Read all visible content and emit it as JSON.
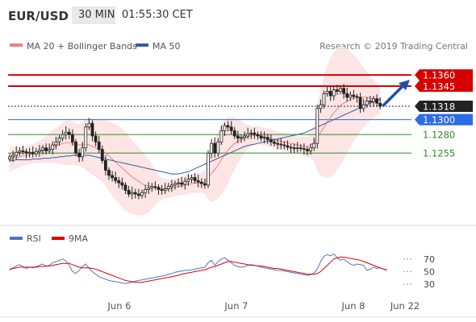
{
  "header": {
    "symbol": "EUR/USD",
    "interval": "30 MIN",
    "time": "01:55:30 CET"
  },
  "legend": {
    "items": [
      {
        "label": "MA 20 + Bollinger Bands",
        "color": "#f08080"
      },
      {
        "label": "MA 50",
        "color": "#2f5f9e"
      }
    ],
    "credit": "Research © 2019 Trading Central"
  },
  "chart_data": [
    {
      "type": "candlestick",
      "name": "EUR/USD 30 MIN",
      "x_labels": [
        "Jun 6",
        "Jun 7",
        "Jun 8",
        "Jun 22"
      ],
      "price_levels": [
        {
          "value": 1.136,
          "label": "1.1360",
          "color": "#d60000",
          "kind": "resistance"
        },
        {
          "value": 1.1345,
          "label": "1.1345",
          "color": "#d60000",
          "kind": "resistance"
        },
        {
          "value": 1.1318,
          "label": "1.1318",
          "color": "#222222",
          "kind": "last"
        },
        {
          "value": 1.13,
          "label": "1.1300",
          "color": "#2e6be6",
          "kind": "pivot"
        },
        {
          "value": 1.128,
          "label": "1.1280",
          "color": "#2e8b2e",
          "kind": "support"
        },
        {
          "value": 1.1255,
          "label": "1.1255",
          "color": "#2e8b2e",
          "kind": "support"
        }
      ],
      "close_prices": [
        1.125,
        1.1252,
        1.1256,
        1.1258,
        1.1257,
        1.1255,
        1.1256,
        1.1254,
        1.1257,
        1.1259,
        1.1262,
        1.1258,
        1.126,
        1.1266,
        1.127,
        1.1275,
        1.128,
        1.1283,
        1.128,
        1.127,
        1.1255,
        1.125,
        1.1262,
        1.129,
        1.1295,
        1.1278,
        1.127,
        1.126,
        1.1245,
        1.1232,
        1.1225,
        1.1222,
        1.1218,
        1.1215,
        1.1212,
        1.1205,
        1.12,
        1.1202,
        1.12,
        1.1198,
        1.1202,
        1.1206,
        1.1208,
        1.121,
        1.1209,
        1.1206,
        1.1205,
        1.1207,
        1.121,
        1.1212,
        1.1214,
        1.1215,
        1.1213,
        1.1217,
        1.122,
        1.1222,
        1.1218,
        1.1216,
        1.1214,
        1.1212,
        1.1255,
        1.1268,
        1.1255,
        1.127,
        1.1285,
        1.1292,
        1.129,
        1.1285,
        1.1278,
        1.1275,
        1.1276,
        1.1278,
        1.1281,
        1.1282,
        1.128,
        1.1278,
        1.1275,
        1.1276,
        1.1273,
        1.127,
        1.1268,
        1.1267,
        1.1266,
        1.1265,
        1.1263,
        1.1262,
        1.1261,
        1.1262,
        1.1261,
        1.126,
        1.1258,
        1.1262,
        1.1268,
        1.1315,
        1.132,
        1.1335,
        1.1338,
        1.1332,
        1.134,
        1.1338,
        1.1342,
        1.1335,
        1.133,
        1.1333,
        1.1331,
        1.133,
        1.1315,
        1.132,
        1.1325,
        1.1324,
        1.1328,
        1.1322,
        1.1318
      ],
      "ma20": [
        1.1246,
        1.1248,
        1.1249,
        1.125,
        1.1251,
        1.1252,
        1.1253,
        1.1254,
        1.1256,
        1.1257,
        1.1258,
        1.126,
        1.1262,
        1.1264,
        1.1265,
        1.1266,
        1.1268,
        1.1269,
        1.1269,
        1.1268,
        1.1266,
        1.1266,
        1.1266,
        1.1267,
        1.1266,
        1.1264,
        1.1262,
        1.126,
        1.1258,
        1.1255,
        1.1251,
        1.1247,
        1.1243,
        1.1239,
        1.1235,
        1.1231,
        1.1227,
        1.1223,
        1.122,
        1.1217,
        1.1214,
        1.1212,
        1.1211,
        1.121,
        1.1209,
        1.1208,
        1.1207,
        1.1207,
        1.1207,
        1.1208,
        1.1209,
        1.121,
        1.1211,
        1.1212,
        1.1213,
        1.1214,
        1.1215,
        1.1215,
        1.1215,
        1.1216,
        1.1222,
        1.1228,
        1.1233,
        1.1239,
        1.1246,
        1.1253,
        1.1259,
        1.1264,
        1.1268,
        1.1271,
        1.1273,
        1.1275,
        1.1277,
        1.1278,
        1.1279,
        1.1279,
        1.1278,
        1.1277,
        1.1276,
        1.1275,
        1.1273,
        1.1272,
        1.1271,
        1.127,
        1.1269,
        1.1268,
        1.1267,
        1.1266,
        1.1265,
        1.1264,
        1.1264,
        1.1266,
        1.1269,
        1.1276,
        1.1283,
        1.129,
        1.1297,
        1.1303,
        1.1309,
        1.1314,
        1.1319,
        1.1322,
        1.1325,
        1.1327,
        1.1329,
        1.133,
        1.133,
        1.133,
        1.133,
        1.1329,
        1.1328,
        1.1327,
        1.1326
      ],
      "ma50": [
        1.1245,
        1.1245,
        1.1246,
        1.1246,
        1.1246,
        1.1246,
        1.1246,
        1.1247,
        1.1247,
        1.1247,
        1.1248,
        1.1248,
        1.1248,
        1.1249,
        1.1249,
        1.125,
        1.125,
        1.1251,
        1.1251,
        1.1252,
        1.1252,
        1.1252,
        1.1252,
        1.1252,
        1.1252,
        1.1251,
        1.125,
        1.1249,
        1.1248,
        1.1247,
        1.1246,
        1.1245,
        1.1244,
        1.1243,
        1.1242,
        1.1241,
        1.124,
        1.1239,
        1.1238,
        1.1237,
        1.1236,
        1.1235,
        1.1234,
        1.1233,
        1.1232,
        1.1231,
        1.123,
        1.1229,
        1.1228,
        1.1227,
        1.1227,
        1.1227,
        1.1228,
        1.1229,
        1.123,
        1.1232,
        1.1234,
        1.1236,
        1.1238,
        1.124,
        1.1242,
        1.1244,
        1.1246,
        1.1248,
        1.125,
        1.1252,
        1.1254,
        1.1256,
        1.1258,
        1.126,
        1.1262,
        1.1264,
        1.1265,
        1.1266,
        1.1267,
        1.1268,
        1.1269,
        1.127,
        1.1271,
        1.1272,
        1.1273,
        1.1274,
        1.1275,
        1.1276,
        1.1277,
        1.1278,
        1.1279,
        1.128,
        1.1281,
        1.1282,
        1.1284,
        1.1286,
        1.1288,
        1.129,
        1.1292,
        1.1294,
        1.1296,
        1.1298,
        1.13,
        1.1302,
        1.1304,
        1.1306,
        1.1308,
        1.131,
        1.1312,
        1.1314,
        1.1316,
        1.1318,
        1.132,
        1.1322,
        1.1324,
        1.1326,
        1.1328
      ],
      "bollinger_width": [
        0.0016,
        0.0016,
        0.0015,
        0.0014,
        0.0013,
        0.0013,
        0.0013,
        0.0013,
        0.0014,
        0.0015,
        0.0016,
        0.0018,
        0.002,
        0.0022,
        0.0024,
        0.0026,
        0.0028,
        0.003,
        0.003,
        0.0029,
        0.0028,
        0.0028,
        0.003,
        0.0034,
        0.0037,
        0.0038,
        0.0039,
        0.004,
        0.0042,
        0.0045,
        0.0047,
        0.0049,
        0.0051,
        0.0052,
        0.0053,
        0.0053,
        0.0052,
        0.005,
        0.0048,
        0.0046,
        0.0043,
        0.004,
        0.0036,
        0.003,
        0.0024,
        0.0018,
        0.0015,
        0.0013,
        0.0012,
        0.0012,
        0.0012,
        0.0012,
        0.0012,
        0.0013,
        0.0013,
        0.0013,
        0.0013,
        0.0013,
        0.0014,
        0.0016,
        0.003,
        0.0038,
        0.0042,
        0.0045,
        0.0047,
        0.0047,
        0.0045,
        0.004,
        0.0035,
        0.003,
        0.0025,
        0.002,
        0.0016,
        0.0013,
        0.0012,
        0.0012,
        0.0012,
        0.0012,
        0.0012,
        0.0012,
        0.0012,
        0.0012,
        0.0012,
        0.0012,
        0.0012,
        0.0012,
        0.0012,
        0.0012,
        0.0012,
        0.0013,
        0.0013,
        0.0018,
        0.0025,
        0.0045,
        0.0058,
        0.0068,
        0.0075,
        0.008,
        0.0082,
        0.0082,
        0.008,
        0.0076,
        0.007,
        0.0064,
        0.0058,
        0.0052,
        0.0046,
        0.004,
        0.0035,
        0.003,
        0.0026,
        0.0022,
        0.0019,
        0.0017
      ]
    },
    {
      "type": "line",
      "name": "RSI",
      "legend": [
        {
          "label": "RSI",
          "color": "#4a78c8"
        },
        {
          "label": "9MA",
          "color": "#e00000"
        }
      ],
      "y_ticks": [
        70,
        50,
        30
      ],
      "ylim": [
        25,
        85
      ],
      "x_labels": [
        "Jun 6",
        "Jun 7",
        "Jun 8",
        "Jun 22"
      ],
      "series": [
        {
          "name": "RSI",
          "values": [
            52,
            56,
            59,
            61,
            58,
            55,
            57,
            56,
            58,
            60,
            62,
            58,
            60,
            64,
            66,
            68,
            70,
            67,
            60,
            50,
            47,
            52,
            58,
            62,
            55,
            50,
            46,
            42,
            40,
            38,
            36,
            35,
            34,
            33,
            32,
            31,
            32,
            33,
            35,
            36,
            37,
            38,
            39,
            40,
            41,
            42,
            43,
            44,
            46,
            47,
            49,
            50,
            51,
            52,
            52,
            53,
            54,
            55,
            56,
            57,
            64,
            68,
            60,
            66,
            70,
            72,
            68,
            64,
            60,
            58,
            57,
            58,
            60,
            61,
            60,
            59,
            57,
            56,
            55,
            54,
            53,
            52,
            52,
            51,
            50,
            49,
            48,
            47,
            46,
            45,
            44,
            45,
            48,
            54,
            66,
            74,
            77,
            75,
            78,
            72,
            68,
            70,
            66,
            62,
            60,
            62,
            61,
            60,
            52,
            54,
            57,
            55,
            56,
            54,
            52
          ]
        },
        {
          "name": "9MA",
          "values": [
            54,
            55,
            56,
            57,
            57,
            57,
            57,
            57,
            57,
            58,
            58,
            59,
            59,
            60,
            61,
            62,
            63,
            63,
            63,
            61,
            59,
            57,
            56,
            56,
            56,
            55,
            54,
            52,
            50,
            48,
            46,
            44,
            42,
            40,
            38,
            36,
            35,
            34,
            33,
            33,
            33,
            34,
            35,
            36,
            37,
            38,
            39,
            40,
            41,
            42,
            43,
            44,
            46,
            47,
            48,
            49,
            50,
            51,
            52,
            53,
            55,
            57,
            58,
            60,
            62,
            64,
            66,
            66,
            65,
            64,
            63,
            62,
            61,
            60,
            60,
            59,
            59,
            58,
            57,
            56,
            55,
            55,
            54,
            53,
            52,
            51,
            50,
            49,
            48,
            47,
            46,
            46,
            46,
            47,
            50,
            55,
            60,
            65,
            70,
            72,
            73,
            73,
            72,
            71,
            70,
            69,
            68,
            66,
            64,
            62,
            60,
            58,
            56,
            54,
            53
          ]
        }
      ]
    }
  ]
}
